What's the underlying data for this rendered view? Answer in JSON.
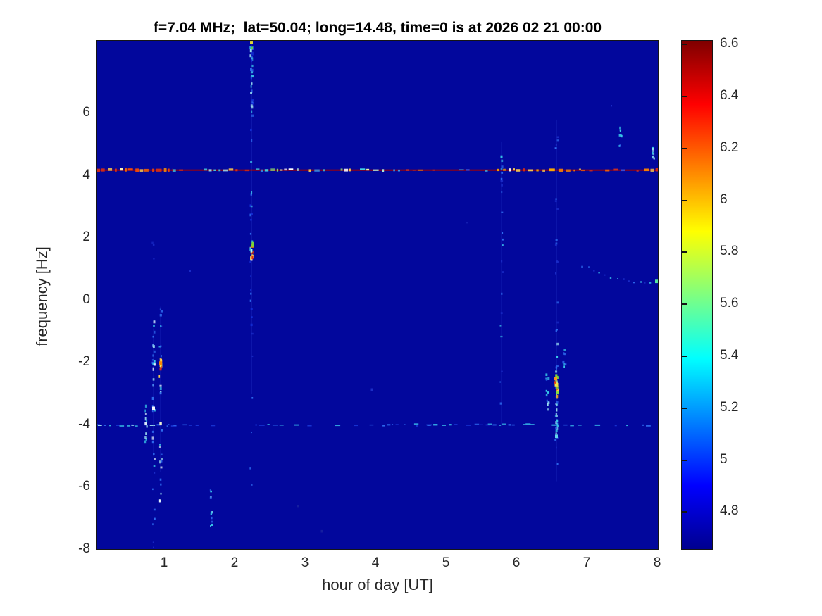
{
  "figure": {
    "background": "#ffffff"
  },
  "chart_data": {
    "type": "heatmap",
    "subtype": "spectrogram",
    "title": "f=7.04 MHz;  lat=50.04; long=14.48, time=0 is at 2026 02 21 00:00",
    "xlabel": "hour of day [UT]",
    "ylabel": "frequency [Hz]",
    "x_ticks": [
      1,
      2,
      3,
      4,
      5,
      6,
      7,
      8
    ],
    "y_ticks": [
      6,
      4,
      2,
      0,
      -2,
      -4,
      -6,
      -8
    ],
    "xlim": [
      0.04,
      8.02
    ],
    "ylim": [
      -8,
      8.35
    ],
    "grid": false,
    "background_value_color": "#02079c",
    "axis_color": "#151515",
    "tick_label_color": "#262626",
    "colorbar": {
      "position": "right",
      "ticks": [
        6.6,
        6.4,
        6.2,
        6,
        5.8,
        5.6,
        5.4,
        5.2,
        5,
        4.8
      ],
      "vmin": 4.655,
      "vmax": 6.617,
      "colormap": "jet",
      "stops": [
        [
          0,
          "#00008f"
        ],
        [
          0.125,
          "#0000ff"
        ],
        [
          0.375,
          "#00ffff"
        ],
        [
          0.625,
          "#ffff00"
        ],
        [
          0.875,
          "#ff0000"
        ],
        [
          1,
          "#7f0000"
        ]
      ]
    },
    "features": [
      {
        "type": "hline_base",
        "f": 4.18,
        "width": 2,
        "color": "#a80000"
      },
      {
        "type": "dash_seq",
        "f": 4.18,
        "h": [
          0.04,
          1.13
        ],
        "width": 4.5,
        "density": 0.97,
        "seed": 11,
        "palette": [
          "#ff4d00",
          "#ff9900",
          "#ffd24d",
          "#ff6a00",
          "#fff2b0",
          "#e03010"
        ]
      },
      {
        "type": "dash_seq",
        "f": 4.18,
        "h": [
          1.13,
          2.2
        ],
        "width": 3,
        "density": 0.6,
        "seed": 12,
        "palette": [
          "#46e0e8",
          "#a8ecf0",
          "#ffd24d",
          "#3a9ff0",
          "#e03010"
        ]
      },
      {
        "type": "dash_seq",
        "f": 4.18,
        "h": [
          2.3,
          4.35
        ],
        "width": 3.2,
        "density": 0.8,
        "seed": 13,
        "palette": [
          "#46e0e8",
          "#b8f0d8",
          "#8adf70",
          "#f0f6a8",
          "#ffd24d",
          "#3a9ff0",
          "#ffffff"
        ]
      },
      {
        "type": "dash_seq",
        "f": 4.18,
        "h": [
          4.35,
          5.72
        ],
        "width": 2.2,
        "density": 0.38,
        "seed": 14,
        "palette": [
          "#d03020",
          "#3a58e8",
          "#46c8e8",
          "#ff8800"
        ]
      },
      {
        "type": "dash_seq",
        "f": 4.18,
        "h": [
          5.72,
          6.92
        ],
        "width": 3.4,
        "density": 0.85,
        "seed": 15,
        "palette": [
          "#ffd24d",
          "#ffae00",
          "#ff8800",
          "#ffe9a0",
          "#e03010",
          "#fffff0"
        ]
      },
      {
        "type": "dash_seq",
        "f": 4.18,
        "h": [
          6.92,
          7.82
        ],
        "width": 2.4,
        "density": 0.5,
        "seed": 16,
        "palette": [
          "#d03020",
          "#ff6a00",
          "#46c8e8",
          "#3a58e8"
        ]
      },
      {
        "type": "dash_seq",
        "f": 4.18,
        "h": [
          7.82,
          8.02
        ],
        "width": 4.5,
        "density": 0.97,
        "seed": 17,
        "palette": [
          "#ff8800",
          "#ffd24d",
          "#e03010",
          "#ff4d00"
        ]
      },
      {
        "type": "dash_seq",
        "f": -4.0,
        "h": [
          0.04,
          8.02
        ],
        "width": 1.8,
        "density": 0.55,
        "seed": 21,
        "palette": [
          "#1a38d8",
          "#2e6cf0",
          "#38b8e8"
        ]
      },
      {
        "type": "dash_seq",
        "f": -4.02,
        "h": [
          0.06,
          1.2
        ],
        "width": 2.2,
        "density": 0.6,
        "seed": 22,
        "palette": [
          "#38c8e8",
          "#9adef0",
          "#2e6cf0"
        ]
      },
      {
        "type": "dash_seq",
        "f": -3.98,
        "h": [
          4.4,
          6.3
        ],
        "width": 1.8,
        "density": 0.45,
        "seed": 23,
        "palette": [
          "#2e6cf0",
          "#38b8e8"
        ]
      },
      {
        "type": "vline_faint",
        "hour": 2.24,
        "f": [
          8.35,
          -3.0
        ],
        "width": 1.6,
        "color": "#2a3fd0",
        "opacity": 0.35
      },
      {
        "type": "vline_faint",
        "hour": 6.57,
        "f": [
          5.8,
          -5.8
        ],
        "width": 1.6,
        "color": "#2a3fd0",
        "opacity": 0.3
      },
      {
        "type": "vline_faint",
        "hour": 5.79,
        "f": [
          5.1,
          -4.0
        ],
        "width": 1.4,
        "color": "#2a3fd0",
        "opacity": 0.28
      },
      {
        "type": "vline_faint",
        "hour": 0.85,
        "f": [
          -0.9,
          -5.0
        ],
        "width": 1.4,
        "color": "#2a3fd0",
        "opacity": 0.3
      },
      {
        "type": "vline_faint",
        "hour": 0.95,
        "f": [
          -0.2,
          -5.5
        ],
        "width": 1.4,
        "color": "#2a3fd0",
        "opacity": 0.3
      },
      {
        "type": "vspeckle",
        "hour": 2.24,
        "f": [
          8.32,
          6.0
        ],
        "n": 26,
        "size": [
          2,
          3.5
        ],
        "seed": 31,
        "palette": [
          "#38c8e8",
          "#2e6cf0",
          "#9adef0",
          "#1430d8"
        ]
      },
      {
        "type": "vspeckle",
        "hour": 2.24,
        "f": [
          6.0,
          2.1
        ],
        "n": 12,
        "size": [
          1.5,
          3
        ],
        "seed": 32,
        "palette": [
          "#2e6cf0",
          "#38b8e8",
          "#1430d8"
        ]
      },
      {
        "type": "vspeckle",
        "hour": 2.24,
        "f": [
          1.98,
          1.3
        ],
        "n": 16,
        "size": [
          2.5,
          4
        ],
        "seed": 33,
        "palette": [
          "#ffd24d",
          "#ff8800",
          "#e03010",
          "#7ad838",
          "#38c8e8",
          "#ffffff"
        ]
      },
      {
        "type": "vspeckle",
        "hour": 2.24,
        "f": [
          1.3,
          -0.8
        ],
        "n": 8,
        "size": [
          1.5,
          2.5
        ],
        "seed": 34,
        "palette": [
          "#2e6cf0",
          "#1430d8"
        ]
      },
      {
        "type": "vspeckle",
        "hour": 2.24,
        "f": [
          -1.0,
          -6.5
        ],
        "n": 6,
        "size": [
          1.5,
          2
        ],
        "seed": 35,
        "palette": [
          "#1a2cc8",
          "#2e6cf0"
        ]
      },
      {
        "type": "dots",
        "points": [
          [
            2.24,
            8.28,
            "#e8e030",
            4
          ],
          [
            2.245,
            8.1,
            "#58d848",
            3
          ]
        ]
      },
      {
        "type": "vspeckle",
        "hour": 0.74,
        "f": [
          -3.3,
          -4.6
        ],
        "n": 10,
        "size": [
          2,
          3.5
        ],
        "seed": 41,
        "palette": [
          "#9adef0",
          "#e8f8ff",
          "#38c8e8"
        ]
      },
      {
        "type": "vspeckle",
        "hour": 0.85,
        "f": [
          -0.6,
          -5.4
        ],
        "n": 30,
        "size": [
          1.8,
          3.2
        ],
        "seed": 42,
        "palette": [
          "#38c8e8",
          "#9adef0",
          "#2e6cf0",
          "#e8f8ff"
        ]
      },
      {
        "type": "vspeckle",
        "hour": 0.85,
        "f": [
          -5.4,
          -7.9
        ],
        "n": 7,
        "size": [
          1.5,
          2
        ],
        "seed": 43,
        "palette": [
          "#1a2cc8",
          "#2e6cf0"
        ]
      },
      {
        "type": "vspeckle",
        "hour": 0.85,
        "f": [
          0.8,
          2.4
        ],
        "n": 3,
        "size": [
          1.5,
          2
        ],
        "seed": 47,
        "palette": [
          "#1a2cc8"
        ]
      },
      {
        "type": "vspeckle",
        "hour": 0.95,
        "f": [
          0.3,
          -1.8
        ],
        "n": 8,
        "size": [
          1.5,
          2.5
        ],
        "seed": 44,
        "palette": [
          "#2e6cf0",
          "#38b8e8"
        ]
      },
      {
        "type": "vspeckle",
        "hour": 0.95,
        "f": [
          -1.85,
          -2.55
        ],
        "n": 10,
        "size": [
          2.5,
          3.5
        ],
        "seed": 45,
        "palette": [
          "#ff8800",
          "#e03010",
          "#ffd24d",
          "#f2f050"
        ]
      },
      {
        "type": "vspeckle",
        "hour": 0.95,
        "f": [
          -2.55,
          -6.4
        ],
        "n": 18,
        "size": [
          1.8,
          3
        ],
        "seed": 46,
        "palette": [
          "#38c8e8",
          "#2e6cf0",
          "#e8f8ff",
          "#9adef0"
        ]
      },
      {
        "type": "dots",
        "points": [
          [
            0.85,
            -3.45,
            "#ffffff",
            4
          ],
          [
            0.95,
            -3.95,
            "#f8f8d0",
            3.5
          ],
          [
            0.74,
            -3.95,
            "#e8f8ff",
            3.5
          ],
          [
            0.95,
            -2.0,
            "#ff8800",
            4
          ],
          [
            0.95,
            -2.2,
            "#e03010",
            3
          ]
        ]
      },
      {
        "type": "vspeckle",
        "hour": 5.79,
        "f": [
          5.2,
          -3.9
        ],
        "n": 22,
        "size": [
          1.5,
          2.5
        ],
        "seed": 51,
        "palette": [
          "#1a2cc8",
          "#2e6cf0",
          "#38b8e8"
        ]
      },
      {
        "type": "dots",
        "points": [
          [
            5.79,
            4.62,
            "#38c8e8",
            3
          ],
          [
            5.79,
            3.9,
            "#2e6cf0",
            2.5
          ]
        ]
      },
      {
        "type": "vspeckle",
        "hour": 6.57,
        "f": [
          5.3,
          -5.6
        ],
        "n": 26,
        "size": [
          1.5,
          2.2
        ],
        "seed": 61,
        "palette": [
          "#1a2cc8",
          "#2e6cf0"
        ]
      },
      {
        "type": "vspeckle",
        "hour": 6.57,
        "f": [
          -1.2,
          -4.5
        ],
        "n": 28,
        "size": [
          2,
          3.2
        ],
        "seed": 62,
        "palette": [
          "#38c8e8",
          "#2e6cf0",
          "#9adef0"
        ]
      },
      {
        "type": "vspeckle",
        "hour": 6.57,
        "f": [
          -2.35,
          -3.05
        ],
        "n": 14,
        "size": [
          3,
          4.5
        ],
        "seed": 63,
        "palette": [
          "#f2f050",
          "#7ad838",
          "#ff8800",
          "#ffd24d",
          "#e03010"
        ]
      },
      {
        "type": "vspeckle",
        "hour": 6.44,
        "f": [
          -2.2,
          -3.5
        ],
        "n": 12,
        "size": [
          2,
          3
        ],
        "seed": 64,
        "palette": [
          "#38c8e8",
          "#2e6cf0",
          "#9adef0"
        ]
      },
      {
        "type": "vspeckle",
        "hour": 6.68,
        "f": [
          -1.5,
          -2.1
        ],
        "n": 7,
        "size": [
          1.8,
          2.6
        ],
        "seed": 65,
        "palette": [
          "#38c8e8",
          "#2e6cf0"
        ]
      },
      {
        "type": "dots",
        "points": [
          [
            6.57,
            -2.7,
            "#f8e840",
            5
          ],
          [
            6.56,
            -2.5,
            "#ff9a20",
            4
          ],
          [
            6.58,
            -2.95,
            "#8ae838",
            4
          ],
          [
            6.55,
            -2.62,
            "#e84010",
            3
          ],
          [
            6.57,
            -4.35,
            "#66e0f0",
            4
          ]
        ]
      },
      {
        "type": "vspeckle",
        "hour": 1.67,
        "f": [
          -6.0,
          -7.4
        ],
        "n": 12,
        "size": [
          1.8,
          3
        ],
        "seed": 71,
        "palette": [
          "#38c8e8",
          "#2e6cf0",
          "#9adef0"
        ]
      },
      {
        "type": "vspeckle",
        "hour": 7.48,
        "f": [
          4.95,
          5.6
        ],
        "n": 8,
        "size": [
          1.8,
          2.6
        ],
        "seed": 81,
        "palette": [
          "#38c8e8",
          "#2e6cf0"
        ]
      },
      {
        "type": "vspeckle",
        "hour": 7.94,
        "f": [
          4.55,
          4.95
        ],
        "n": 9,
        "size": [
          2,
          3
        ],
        "seed": 82,
        "palette": [
          "#38c8e8",
          "#9adef0"
        ]
      },
      {
        "type": "arc_dots",
        "from": [
          6.95,
          1.15
        ],
        "to": [
          8.0,
          0.62
        ],
        "n": 14,
        "size": [
          1.6,
          2.6
        ],
        "curve": 0.18,
        "seed": 91,
        "palette": [
          "#1a2cc8",
          "#2e6cf0",
          "#38b8e8"
        ]
      },
      {
        "type": "dots",
        "points": [
          [
            7.99,
            0.62,
            "#5af0a0",
            4
          ]
        ]
      },
      {
        "type": "dots",
        "points": [
          [
            3.95,
            -2.85,
            "#1e30c8",
            3
          ],
          [
            3.24,
            -7.4,
            "#16209f",
            3
          ],
          [
            1.37,
            0.95,
            "#1a2cc8",
            2
          ],
          [
            7.35,
            6.25,
            "#1a2cc8",
            2
          ],
          [
            5.3,
            2.5,
            "#141fb0",
            2
          ],
          [
            2.9,
            -6.6,
            "#16209f",
            2
          ]
        ]
      }
    ]
  }
}
